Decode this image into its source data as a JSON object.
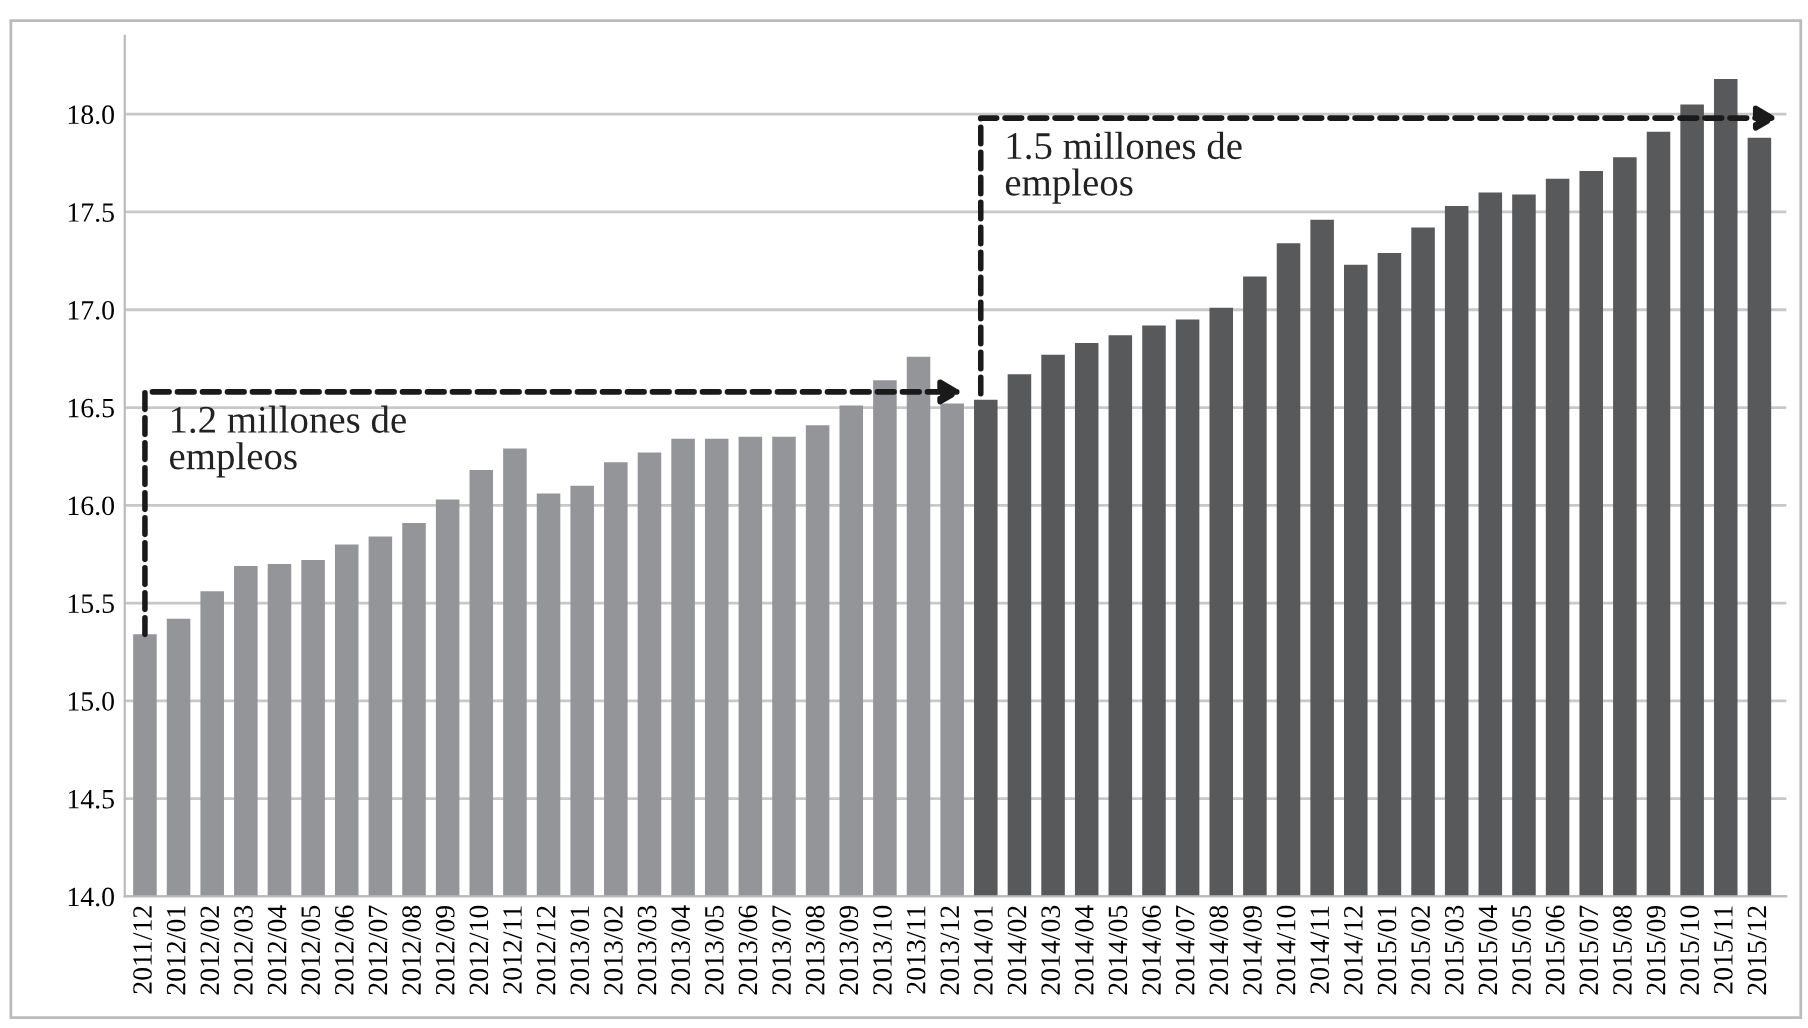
{
  "chart_data": {
    "type": "bar",
    "categories": [
      "2011/12",
      "2012/01",
      "2012/02",
      "2012/03",
      "2012/04",
      "2012/05",
      "2012/06",
      "2012/07",
      "2012/08",
      "2012/09",
      "2012/10",
      "2012/11",
      "2012/12",
      "2013/01",
      "2013/02",
      "2013/03",
      "2013/04",
      "2013/05",
      "2013/06",
      "2013/07",
      "2013/08",
      "2013/09",
      "2013/10",
      "2013/11",
      "2013/12",
      "2014/01",
      "2014/02",
      "2014/03",
      "2014/04",
      "2014/05",
      "2014/06",
      "2014/07",
      "2014/08",
      "2014/09",
      "2014/10",
      "2014/11",
      "2014/12",
      "2015/01",
      "2015/02",
      "2015/03",
      "2015/04",
      "2015/05",
      "2015/06",
      "2015/07",
      "2015/08",
      "2015/09",
      "2015/10",
      "2015/11",
      "2015/12"
    ],
    "values": [
      15.34,
      15.42,
      15.56,
      15.69,
      15.7,
      15.72,
      15.8,
      15.84,
      15.91,
      16.03,
      16.18,
      16.29,
      16.06,
      16.1,
      16.22,
      16.27,
      16.34,
      16.34,
      16.35,
      16.35,
      16.41,
      16.51,
      16.64,
      16.76,
      16.52,
      16.54,
      16.67,
      16.77,
      16.83,
      16.87,
      16.92,
      16.95,
      17.01,
      17.17,
      17.34,
      17.46,
      17.23,
      17.29,
      17.42,
      17.53,
      17.6,
      17.59,
      17.67,
      17.71,
      17.78,
      17.91,
      18.05,
      18.18,
      17.88
    ],
    "colors": [
      "#939598",
      "#939598",
      "#939598",
      "#939598",
      "#939598",
      "#939598",
      "#939598",
      "#939598",
      "#939598",
      "#939598",
      "#939598",
      "#939598",
      "#939598",
      "#939598",
      "#939598",
      "#939598",
      "#939598",
      "#939598",
      "#939598",
      "#939598",
      "#939598",
      "#939598",
      "#939598",
      "#939598",
      "#939598",
      "#58595b",
      "#58595b",
      "#58595b",
      "#58595b",
      "#58595b",
      "#58595b",
      "#58595b",
      "#58595b",
      "#58595b",
      "#58595b",
      "#58595b",
      "#58595b",
      "#58595b",
      "#58595b",
      "#58595b",
      "#58595b",
      "#58595b",
      "#58595b",
      "#58595b",
      "#58595b",
      "#58595b",
      "#58595b",
      "#58595b",
      "#58595b"
    ],
    "ylim": [
      14.0,
      18.4
    ],
    "yticks": [
      {
        "value": 14.0,
        "label": "14.0"
      },
      {
        "value": 14.5,
        "label": "14.5"
      },
      {
        "value": 15.0,
        "label": "15.0"
      },
      {
        "value": 15.5,
        "label": "15.5"
      },
      {
        "value": 16.0,
        "label": "16.0"
      },
      {
        "value": 16.5,
        "label": "16.5"
      },
      {
        "value": 17.0,
        "label": "17.0"
      },
      {
        "value": 17.5,
        "label": "17.5"
      },
      {
        "value": 18.0,
        "label": "18.0"
      }
    ],
    "grid": "y",
    "annotations": [
      "1.2 millones de\nempleos",
      "1.5 millones de\nempleos"
    ]
  }
}
